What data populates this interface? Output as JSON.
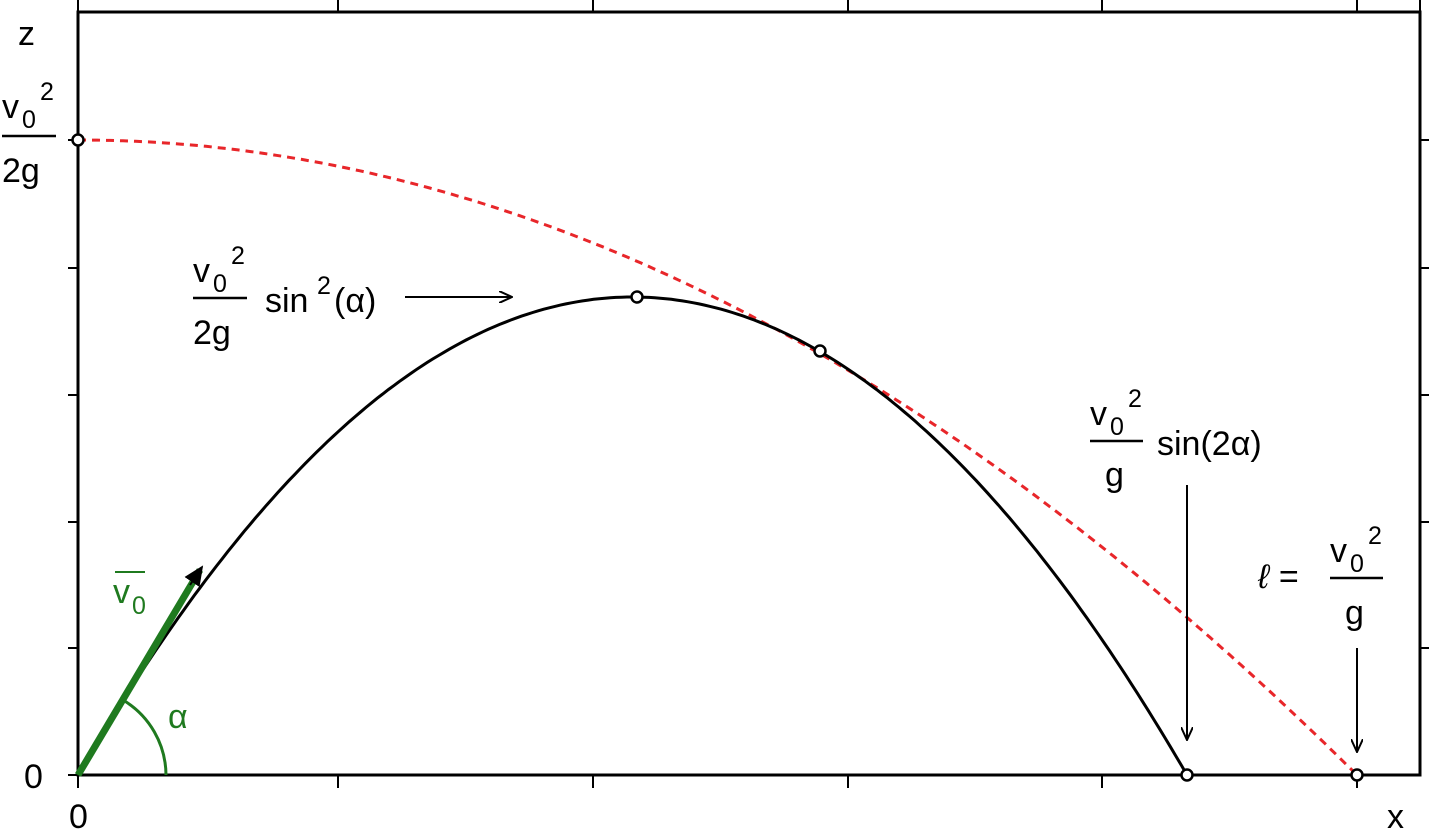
{
  "axes": {
    "z_label": "z",
    "x_label": "x",
    "z_origin": "0",
    "x_origin": "0"
  },
  "labels": {
    "max_height": {
      "num_base": "v",
      "num_sub": "0",
      "num_sup": "2",
      "den": "2g"
    },
    "apex": {
      "num_base": "v",
      "num_sub": "0",
      "num_sup": "2",
      "den": "2g",
      "func": "sin",
      "func_sup": "2",
      "arg": "(α)"
    },
    "range": {
      "num_base": "v",
      "num_sub": "0",
      "num_sup": "2",
      "den": "g",
      "func": "sin(2α)"
    },
    "max_range": {
      "prefix": "ℓ =",
      "num_base": "v",
      "num_sub": "0",
      "num_sup": "2",
      "den": "g"
    },
    "velocity": {
      "base": "v",
      "sub": "0"
    },
    "angle": "α"
  }
}
